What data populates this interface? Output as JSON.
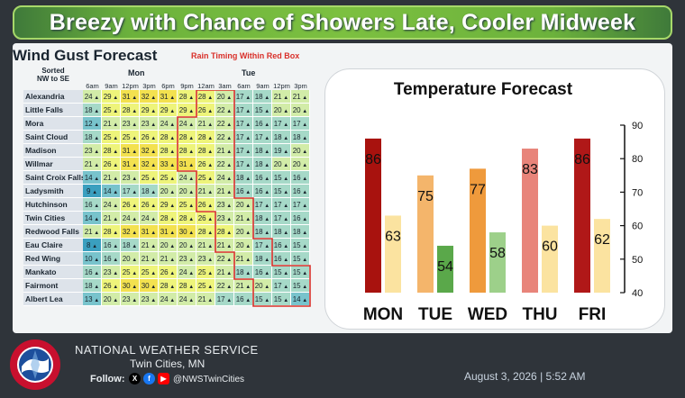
{
  "header": {
    "title": "Breezy with Chance of Showers Late, Cooler Midweek"
  },
  "gusts": {
    "title": "Wind Gust Forecast",
    "rain_note": "Rain Timing Within Red Box",
    "sorted_line1": "Sorted",
    "sorted_line2": "NW to SE",
    "day1": "Mon",
    "day2": "Tue",
    "times": [
      "6am",
      "9am",
      "12pm",
      "3pm",
      "6pm",
      "9pm",
      "12am",
      "3am",
      "6am",
      "9am",
      "12pm",
      "3pm"
    ],
    "rows": [
      {
        "city": "Alexandria",
        "values": [
          "24",
          "29",
          "31",
          "32",
          "31",
          "28",
          "28",
          "20",
          "17",
          "18",
          "21",
          "21"
        ]
      },
      {
        "city": "Little Falls",
        "values": [
          "18",
          "25",
          "28",
          "29",
          "29",
          "29",
          "26",
          "22",
          "17",
          "15",
          "20",
          "20"
        ]
      },
      {
        "city": "Mora",
        "values": [
          "12",
          "21",
          "23",
          "23",
          "24",
          "24",
          "21",
          "22",
          "17",
          "16",
          "17",
          "17"
        ]
      },
      {
        "city": "Saint Cloud",
        "values": [
          "18",
          "25",
          "25",
          "26",
          "28",
          "28",
          "28",
          "22",
          "17",
          "17",
          "18",
          "18"
        ]
      },
      {
        "city": "Madison",
        "values": [
          "23",
          "28",
          "31",
          "32",
          "28",
          "28",
          "28",
          "21",
          "17",
          "18",
          "19",
          "20"
        ]
      },
      {
        "city": "Willmar",
        "values": [
          "21",
          "26",
          "31",
          "32",
          "33",
          "31",
          "26",
          "22",
          "17",
          "18",
          "20",
          "20"
        ]
      },
      {
        "city": "Saint Croix Falls",
        "values": [
          "14",
          "21",
          "23",
          "25",
          "25",
          "24",
          "25",
          "24",
          "18",
          "16",
          "15",
          "16"
        ]
      },
      {
        "city": "Ladysmith",
        "values": [
          "9",
          "14",
          "17",
          "18",
          "20",
          "20",
          "21",
          "21",
          "16",
          "16",
          "15",
          "16"
        ]
      },
      {
        "city": "Hutchinson",
        "values": [
          "16",
          "24",
          "26",
          "26",
          "29",
          "25",
          "26",
          "23",
          "20",
          "17",
          "17",
          "17"
        ]
      },
      {
        "city": "Twin Cities",
        "values": [
          "14",
          "21",
          "24",
          "24",
          "28",
          "28",
          "26",
          "23",
          "21",
          "18",
          "17",
          "16"
        ]
      },
      {
        "city": "Redwood Falls",
        "values": [
          "21",
          "28",
          "32",
          "31",
          "31",
          "30",
          "28",
          "28",
          "20",
          "18",
          "18",
          "18"
        ]
      },
      {
        "city": "Eau Claire",
        "values": [
          "8",
          "16",
          "18",
          "21",
          "20",
          "20",
          "21",
          "21",
          "20",
          "17",
          "16",
          "15"
        ]
      },
      {
        "city": "Red Wing",
        "values": [
          "10",
          "16",
          "20",
          "21",
          "21",
          "23",
          "23",
          "22",
          "21",
          "18",
          "16",
          "15"
        ]
      },
      {
        "city": "Mankato",
        "values": [
          "16",
          "23",
          "25",
          "25",
          "26",
          "24",
          "25",
          "21",
          "18",
          "16",
          "15",
          "15"
        ]
      },
      {
        "city": "Fairmont",
        "values": [
          "18",
          "26",
          "30",
          "30",
          "28",
          "28",
          "25",
          "22",
          "21",
          "20",
          "17",
          "15"
        ]
      },
      {
        "city": "Albert Lea",
        "values": [
          "13",
          "20",
          "23",
          "23",
          "24",
          "24",
          "21",
          "17",
          "16",
          "15",
          "15",
          "14"
        ]
      }
    ]
  },
  "chart_data": {
    "type": "bar",
    "title": "Temperature Forecast",
    "categories": [
      "MON",
      "TUE",
      "WED",
      "THU",
      "FRI"
    ],
    "series": [
      {
        "values": [
          86,
          75,
          77,
          83,
          86
        ]
      },
      {
        "values": [
          63,
          54,
          58,
          60,
          62
        ]
      }
    ],
    "ylim": [
      40,
      90
    ],
    "yticks": [
      40,
      50,
      60,
      70,
      80,
      90
    ],
    "high_colors": [
      "#a8120e",
      "#f4b56b",
      "#ef9a3c",
      "#e8847a",
      "#b01818"
    ],
    "low_colors": [
      "#fbe3a0",
      "#5aa84a",
      "#9dd08a",
      "#fbe3a0",
      "#fbe3a0"
    ],
    "grid": false,
    "legend": "none"
  },
  "footer": {
    "agency": "NATIONAL WEATHER SERVICE",
    "office": "Twin Cities, MN",
    "follow_label": "Follow:",
    "handle": "@NWSTwinCities",
    "timestamp": "August 3, 2026 | 5:52 AM",
    "logo_text": "NATIONAL WEATHER SERVICE"
  }
}
